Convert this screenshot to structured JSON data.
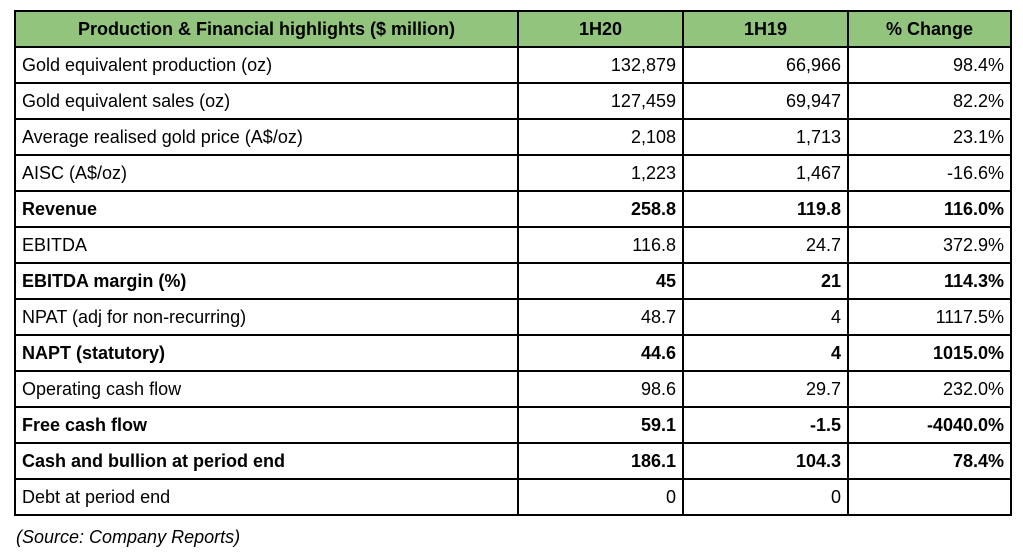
{
  "colors": {
    "header_bg": "#93c47d",
    "border": "#000000",
    "text": "#000000",
    "page_bg": "#ffffff"
  },
  "table": {
    "header": {
      "title": "Production & Financial highlights ($ million)",
      "col_1h20": "1H20",
      "col_1h19": "1H19",
      "col_change": "% Change"
    },
    "rows": [
      {
        "label": "Gold equivalent production (oz)",
        "h1_2020": "132,879",
        "h1_2019": "66,966",
        "pct_change": "98.4%",
        "bold": false
      },
      {
        "label": "Gold equivalent sales (oz)",
        "h1_2020": "127,459",
        "h1_2019": "69,947",
        "pct_change": "82.2%",
        "bold": false
      },
      {
        "label": "Average realised gold price (A$/oz)",
        "h1_2020": "2,108",
        "h1_2019": "1,713",
        "pct_change": "23.1%",
        "bold": false
      },
      {
        "label": "AISC (A$/oz)",
        "h1_2020": "1,223",
        "h1_2019": "1,467",
        "pct_change": "-16.6%",
        "bold": false
      },
      {
        "label": "Revenue",
        "h1_2020": "258.8",
        "h1_2019": "119.8",
        "pct_change": "116.0%",
        "bold": true
      },
      {
        "label": "EBITDA",
        "h1_2020": "116.8",
        "h1_2019": "24.7",
        "pct_change": "372.9%",
        "bold": false
      },
      {
        "label": "EBITDA margin (%)",
        "h1_2020": "45",
        "h1_2019": "21",
        "pct_change": "114.3%",
        "bold": true
      },
      {
        "label": "NPAT (adj for non-recurring)",
        "h1_2020": "48.7",
        "h1_2019": "4",
        "pct_change": "1117.5%",
        "bold": false
      },
      {
        "label": "NAPT (statutory)",
        "h1_2020": "44.6",
        "h1_2019": "4",
        "pct_change": "1015.0%",
        "bold": true
      },
      {
        "label": "Operating cash flow",
        "h1_2020": "98.6",
        "h1_2019": "29.7",
        "pct_change": "232.0%",
        "bold": false
      },
      {
        "label": "Free cash flow",
        "h1_2020": "59.1",
        "h1_2019": "-1.5",
        "pct_change": "-4040.0%",
        "bold": true
      },
      {
        "label": "Cash and bullion at period end",
        "h1_2020": "186.1",
        "h1_2019": "104.3",
        "pct_change": "78.4%",
        "bold": true
      },
      {
        "label": "Debt at period end",
        "h1_2020": "0",
        "h1_2019": "0",
        "pct_change": "",
        "bold": false
      }
    ]
  },
  "footer": {
    "source_note": "(Source: Company Reports)"
  }
}
